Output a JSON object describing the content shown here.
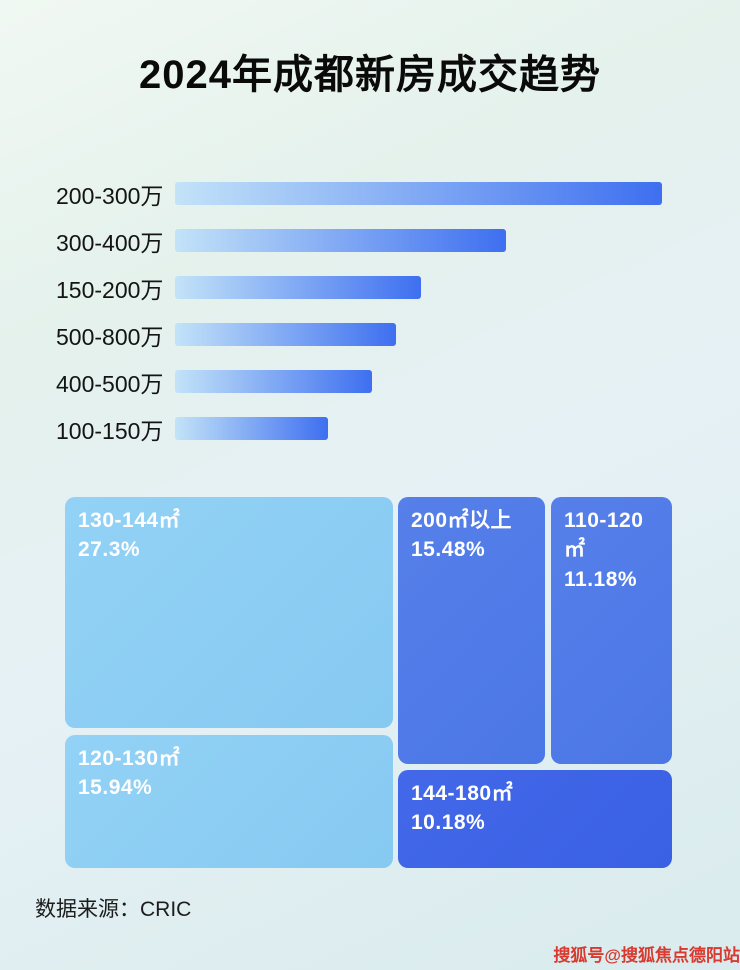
{
  "page": {
    "title": "2024年成都新房成交趋势",
    "source": "数据来源：CRIC",
    "watermark": "搜狐号@搜狐焦点德阳站"
  },
  "chart_data": [
    {
      "type": "bar",
      "orientation": "horizontal",
      "title": "2024年成都新房成交趋势",
      "categories": [
        "200-300万",
        "300-400万",
        "150-200万",
        "500-800万",
        "400-500万",
        "100-150万"
      ],
      "values": [
        100,
        68,
        50.5,
        45.4,
        40.5,
        31.5
      ],
      "value_unit": "percent-of-longest-bar",
      "xlabel": "",
      "ylabel": "",
      "grid": false,
      "legend": false
    },
    {
      "type": "treemap",
      "items": [
        {
          "label": "130-144㎡",
          "value": 27.3,
          "display": "27.3%"
        },
        {
          "label": "200㎡以上",
          "value": 15.48,
          "display": "15.48%"
        },
        {
          "label": "110-120㎡",
          "value": 11.18,
          "display": "11.18%"
        },
        {
          "label": "120-130㎡",
          "value": 15.94,
          "display": "15.94%"
        },
        {
          "label": "144-180㎡",
          "value": 10.18,
          "display": "10.18%"
        }
      ]
    }
  ],
  "colors": {
    "bar_gradient_start": "#c3e3f8",
    "bar_gradient_end": "#3e6ff0",
    "treemap_light": "#86c9f1",
    "treemap_medium": "#4b77e6",
    "treemap_dark": "#3a60e4",
    "watermark_red": "#d93a30",
    "text": "#0d0d0d"
  }
}
